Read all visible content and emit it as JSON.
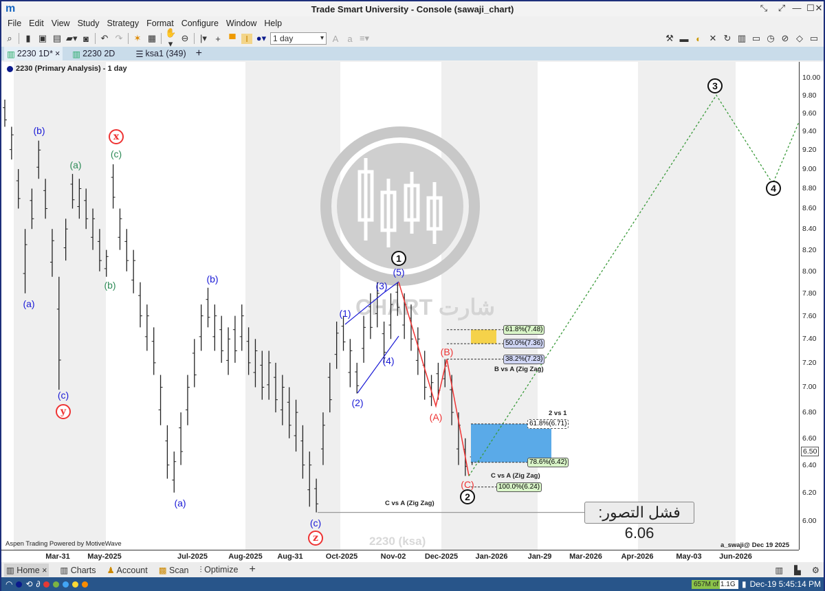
{
  "window": {
    "title": "Trade Smart University - Console (sawaji_chart)",
    "logo": "m",
    "controls": [
      "shrink-icon",
      "expand-icon",
      "minimize-icon",
      "maximize-icon",
      "close-icon"
    ]
  },
  "menu": [
    "File",
    "Edit",
    "View",
    "Study",
    "Strategy",
    "Format",
    "Configure",
    "Window",
    "Help"
  ],
  "toolbar": {
    "period": "1 day"
  },
  "tabs": [
    {
      "label": "2230 1D*",
      "close": "×"
    },
    {
      "label": "2230 2D"
    },
    {
      "label": "ksa1 (349)"
    },
    {
      "label": "+"
    }
  ],
  "chart": {
    "header": "2230 (Primary Analysis) - 1 day",
    "watermark": "CHART شارت",
    "symbol_watermark": "2230 (ksa)",
    "footer_left": "Aspen Trading Powered by MotiveWave",
    "footer_right": "a_swaji@ Dec 19 2025",
    "current_price": "6.50",
    "failure_label": "فشل التصور: 6.06",
    "notes": {
      "b_vs_a": "B vs A (Zig Zag)",
      "c_vs_a": "C vs A (Zig Zag)",
      "c_vs_a_left": "C vs A (Zig Zag)",
      "two_vs_one": "2 vs 1"
    }
  },
  "colors": {
    "blue_wave": "#1a1ad6",
    "red_wave": "#e33",
    "green_wave": "#2e8b57",
    "projection": "#3a9a3a",
    "fib_yellow": "#f5d24a",
    "fib_blue": "#5aaae8"
  },
  "fib_levels": [
    {
      "label": "61.8%(7.48)",
      "price": 7.48,
      "bg": "#d9f5c8"
    },
    {
      "label": "50.0%(7.36)",
      "price": 7.36,
      "bg": "#d0d6f5"
    },
    {
      "label": "38.2%(7.23)",
      "price": 7.23,
      "bg": "#d0d6f5"
    },
    {
      "label": "61.8%(6.71)",
      "price": 6.71,
      "bg": "#ffffff"
    },
    {
      "label": "78.6%(6.42)",
      "price": 6.42,
      "bg": "#d9f5c8"
    },
    {
      "label": "100.0%(6.24)",
      "price": 6.24,
      "bg": "#d9f5c8"
    }
  ],
  "wave_labels": [
    {
      "t": "(b)",
      "c": "blue"
    },
    {
      "t": "(a)",
      "c": "blue"
    },
    {
      "t": "(c)",
      "c": "blue"
    },
    {
      "t": "y",
      "c": "redc"
    },
    {
      "t": "x",
      "c": "redc"
    },
    {
      "t": "(c)",
      "c": "green"
    },
    {
      "t": "(a)",
      "c": "green"
    },
    {
      "t": "(b)",
      "c": "green"
    },
    {
      "t": "(b)",
      "c": "blue"
    },
    {
      "t": "(a)",
      "c": "blue"
    },
    {
      "t": "(c)",
      "c": "blue"
    },
    {
      "t": "z",
      "c": "redc"
    },
    {
      "t": "(1)",
      "c": "blue"
    },
    {
      "t": "(2)",
      "c": "blue"
    },
    {
      "t": "(3)",
      "c": "blue"
    },
    {
      "t": "(4)",
      "c": "blue"
    },
    {
      "t": "(5)",
      "c": "blue"
    },
    {
      "t": "1",
      "c": "blackc"
    },
    {
      "t": "(A)",
      "c": "red"
    },
    {
      "t": "(B)",
      "c": "red"
    },
    {
      "t": "(C)",
      "c": "red"
    },
    {
      "t": "2",
      "c": "blackc"
    },
    {
      "t": "3",
      "c": "blackc"
    },
    {
      "t": "4",
      "c": "blackc"
    }
  ],
  "chart_data": {
    "type": "ohlc",
    "y_scale": "log",
    "ylim": [
      6.0,
      10.0
    ],
    "y_ticks": [
      "10.00",
      "9.80",
      "9.60",
      "9.40",
      "9.20",
      "9.00",
      "8.80",
      "8.60",
      "8.40",
      "8.20",
      "8.00",
      "7.80",
      "7.60",
      "7.40",
      "7.20",
      "7.00",
      "6.80",
      "6.60",
      "6.40",
      "6.20",
      "6.00"
    ],
    "x_ticks": [
      "Mar-31",
      "May-2025",
      "Jul-2025",
      "Aug-2025",
      "Aug-31",
      "Oct-2025",
      "Nov-02",
      "Dec-2025",
      "Jan-2026",
      "Jan-29",
      "Mar-2026",
      "Apr-2026",
      "May-03",
      "Jun-2026"
    ],
    "bars_high_low": [
      [
        9.75,
        9.45
      ],
      [
        9.45,
        9.1
      ],
      [
        9.0,
        8.6
      ],
      [
        8.4,
        7.8
      ],
      [
        8.8,
        8.4
      ],
      [
        9.3,
        8.9
      ],
      [
        8.9,
        8.5
      ],
      [
        8.4,
        7.95
      ],
      [
        7.95,
        6.98
      ],
      [
        8.5,
        8.1
      ],
      [
        8.95,
        8.6
      ],
      [
        8.9,
        8.5
      ],
      [
        8.8,
        8.4
      ],
      [
        8.6,
        8.2
      ],
      [
        8.4,
        8.0
      ],
      [
        8.2,
        7.95
      ],
      [
        9.05,
        8.6
      ],
      [
        8.6,
        8.2
      ],
      [
        8.4,
        8.0
      ],
      [
        8.2,
        7.8
      ],
      [
        7.9,
        7.5
      ],
      [
        7.7,
        7.3
      ],
      [
        7.5,
        7.1
      ],
      [
        7.1,
        6.7
      ],
      [
        6.7,
        6.3
      ],
      [
        6.5,
        6.2
      ],
      [
        6.8,
        6.4
      ],
      [
        7.1,
        6.7
      ],
      [
        7.4,
        7.0
      ],
      [
        7.7,
        7.3
      ],
      [
        7.85,
        7.5
      ],
      [
        7.7,
        7.3
      ],
      [
        7.6,
        7.2
      ],
      [
        7.5,
        7.1
      ],
      [
        7.6,
        7.2
      ],
      [
        7.7,
        7.3
      ],
      [
        7.5,
        7.1
      ],
      [
        7.4,
        7.0
      ],
      [
        7.3,
        6.9
      ],
      [
        7.3,
        6.9
      ],
      [
        7.2,
        6.8
      ],
      [
        7.1,
        6.7
      ],
      [
        7.0,
        6.6
      ],
      [
        6.9,
        6.5
      ],
      [
        6.7,
        6.3
      ],
      [
        6.5,
        6.1
      ],
      [
        6.3,
        6.06
      ],
      [
        6.8,
        6.4
      ],
      [
        7.2,
        6.8
      ],
      [
        7.55,
        7.15
      ],
      [
        7.6,
        7.3
      ],
      [
        7.4,
        7.0
      ],
      [
        7.2,
        6.95
      ],
      [
        7.6,
        7.2
      ],
      [
        7.8,
        7.4
      ],
      [
        7.9,
        7.5
      ],
      [
        7.55,
        7.2
      ],
      [
        7.8,
        7.4
      ],
      [
        7.9,
        7.6
      ],
      [
        7.8,
        7.4
      ],
      [
        7.7,
        7.3
      ],
      [
        7.5,
        7.1
      ],
      [
        7.3,
        6.9
      ],
      [
        7.1,
        6.85
      ],
      [
        7.2,
        6.9
      ],
      [
        7.23,
        7.0
      ],
      [
        7.1,
        6.7
      ],
      [
        6.8,
        6.4
      ],
      [
        6.6,
        6.32
      ],
      [
        6.6,
        6.4
      ]
    ],
    "projection": [
      {
        "label": "start",
        "price": 6.32
      },
      {
        "label": "3",
        "price": 9.8
      },
      {
        "label": "4",
        "price": 8.85
      },
      {
        "label": "end",
        "price": 9.5
      }
    ],
    "failure_level": 6.06
  },
  "bottom_tabs": [
    "Home",
    "Charts",
    "Account",
    "Scan",
    "Optimize",
    "+"
  ],
  "status": {
    "memory": "657M of 1.1G",
    "datetime": "Dec-19 5:45:14 PM"
  }
}
